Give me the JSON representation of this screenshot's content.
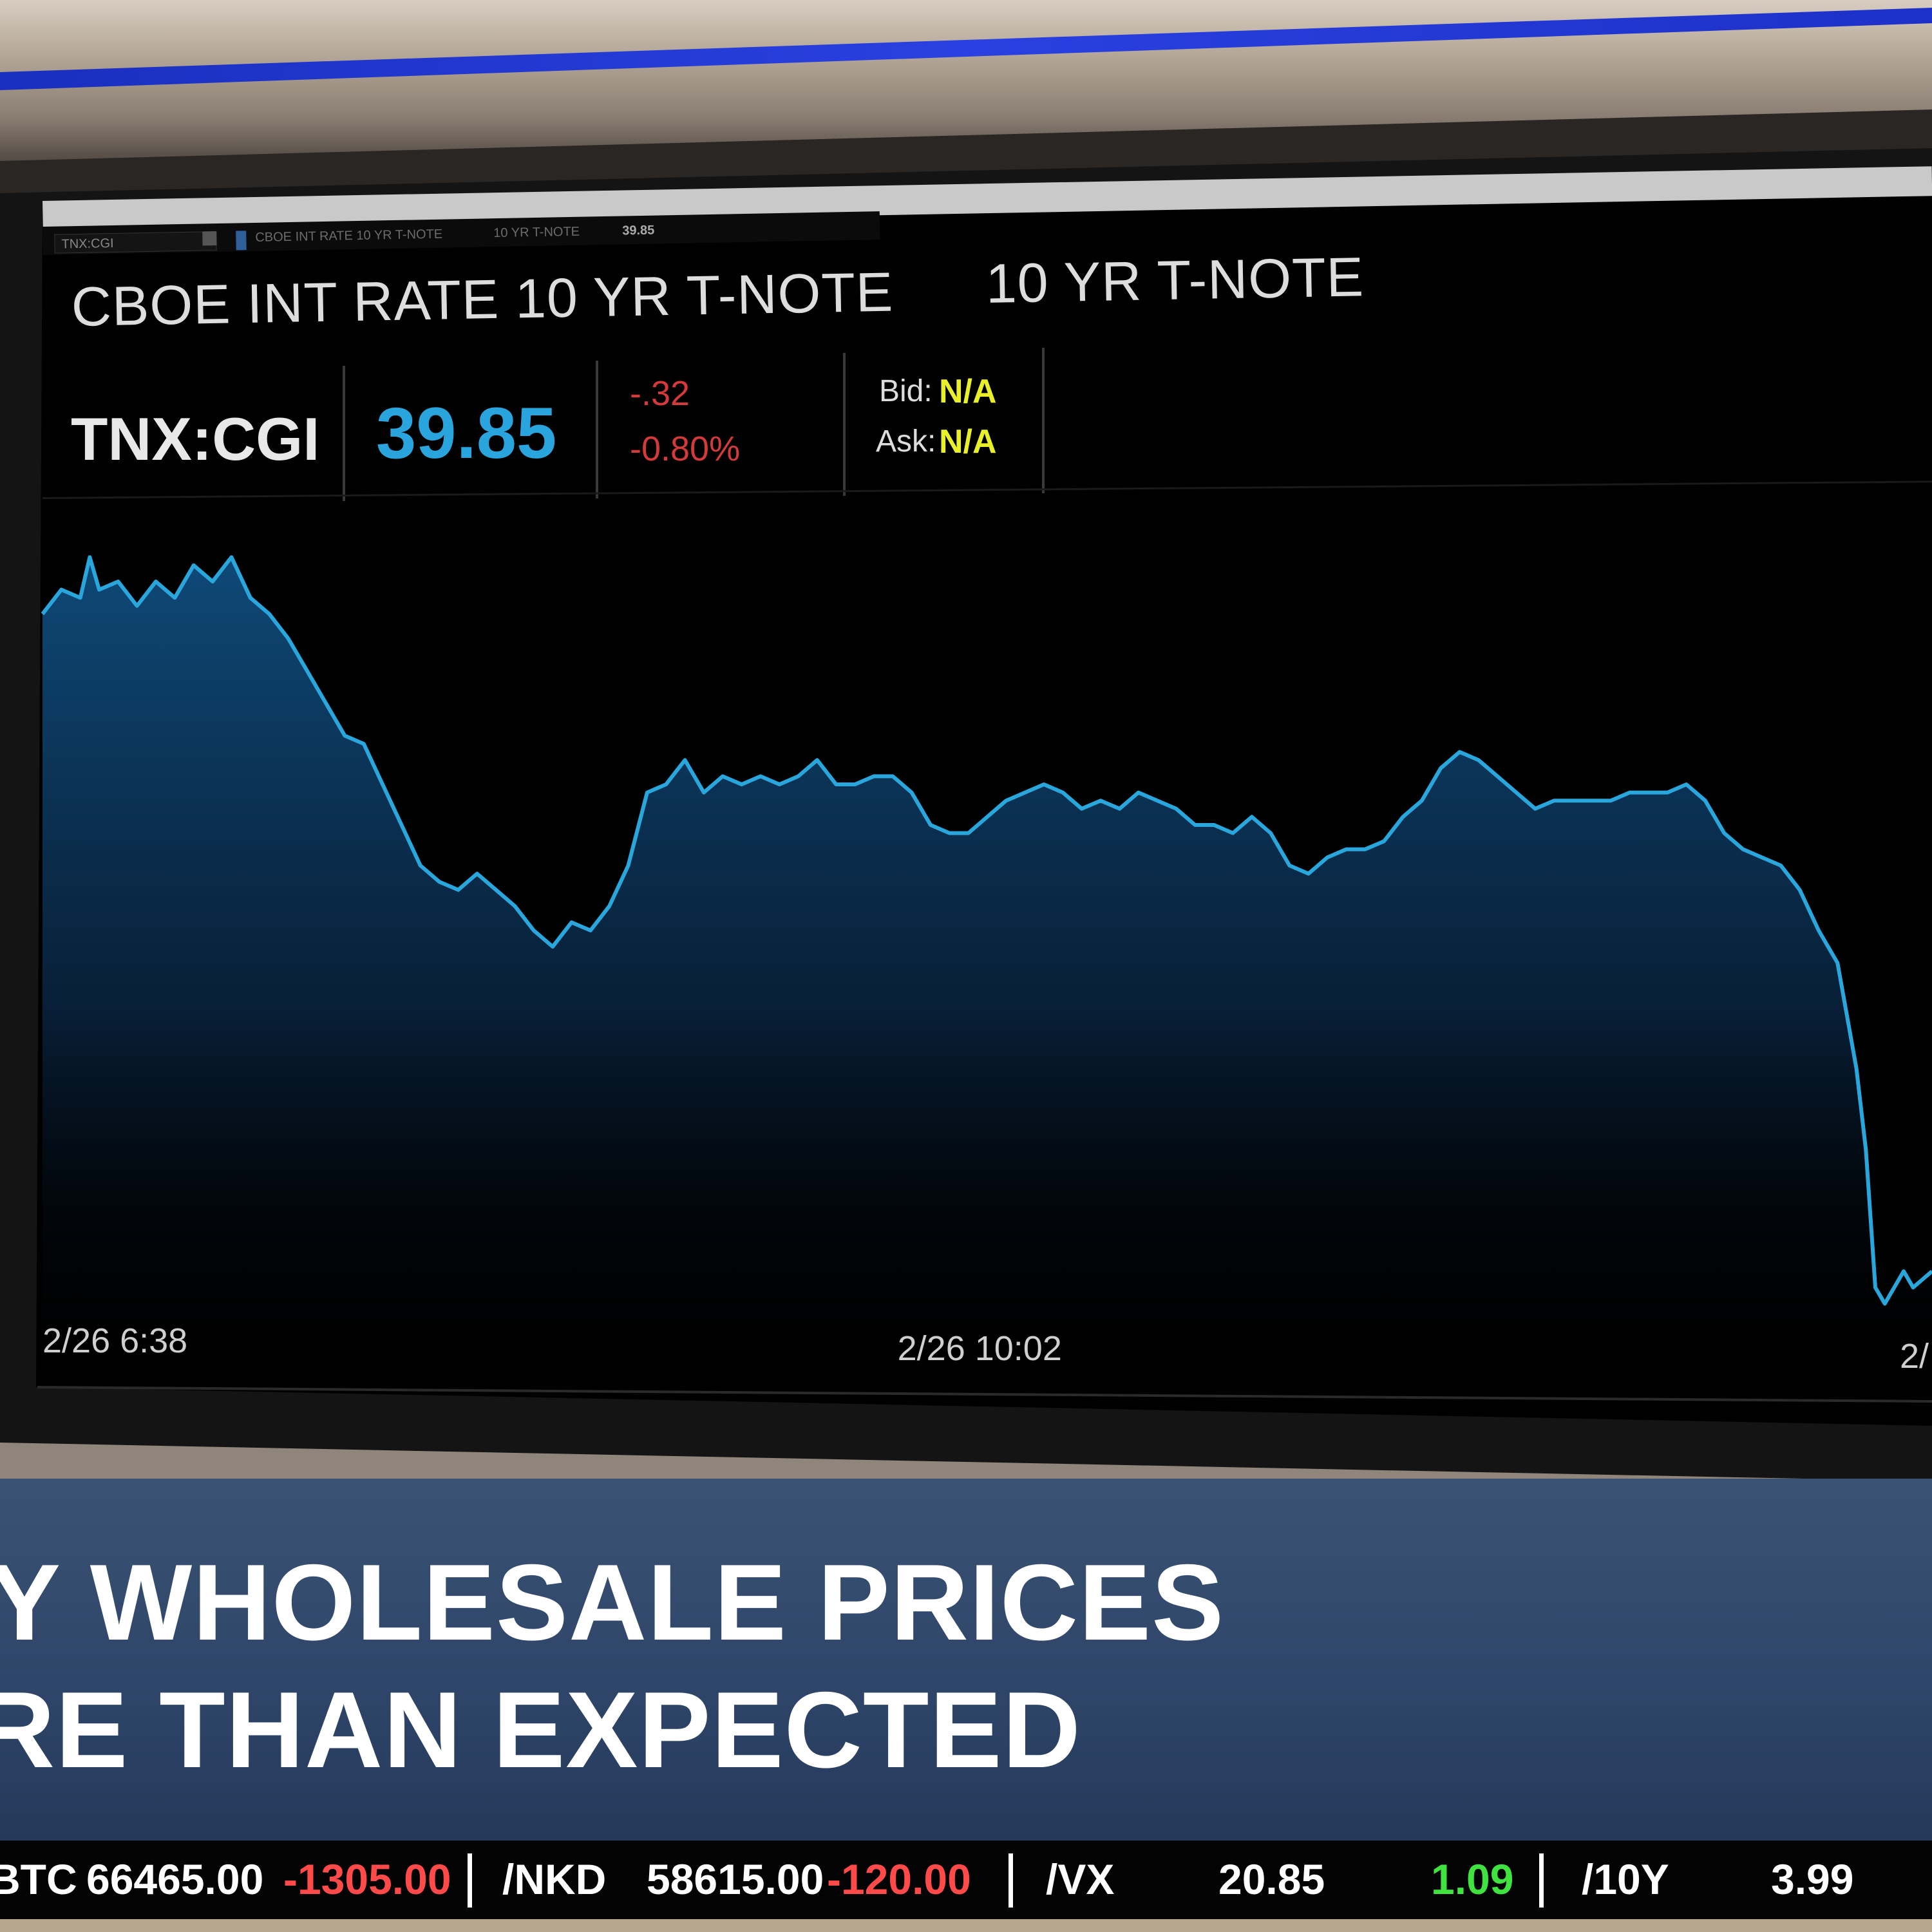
{
  "window": {
    "symbol_box": "TNX:CGI",
    "toolbar_name": "CBOE INT RATE 10 YR T-NOTE",
    "toolbar_desc": "10 YR T-NOTE",
    "toolbar_last": "39.85"
  },
  "quote": {
    "title_full": "CBOE INT RATE 10 YR T-NOTE",
    "title_short": "10 YR T-NOTE",
    "symbol": "TNX:CGI",
    "last": "39.85",
    "change": "-.32",
    "change_pct": "-0.80%",
    "bid_label": "Bid:",
    "bid_value": "N/A",
    "ask_label": "Ask:",
    "ask_value": "N/A",
    "colors": {
      "price": "#2aa4dc",
      "negative": "#d43a3a",
      "bid_ask": "#e9f02a",
      "line": "#29a7dd"
    }
  },
  "chart_data": {
    "type": "area",
    "title": "",
    "xlabel": "",
    "ylabel": "",
    "x_tick_labels": [
      "2/26 6:38",
      "2/26 10:02",
      "2/"
    ],
    "x_ticks_at": [
      0,
      49.6,
      100
    ],
    "xlim": [
      0,
      100
    ],
    "ylim": [
      0,
      100
    ],
    "grid": false,
    "legend": "none",
    "series": [
      {
        "x": [
          0,
          1,
          2,
          2.5,
          3,
          4,
          5,
          6,
          7,
          8,
          9,
          10,
          11,
          12,
          13,
          14,
          15,
          16,
          17,
          18,
          19,
          20,
          21,
          22,
          23,
          24,
          25,
          26,
          27,
          28,
          29,
          30,
          31,
          32,
          33,
          34,
          35,
          36,
          37,
          38,
          39,
          40,
          41,
          42,
          43,
          44,
          45,
          46,
          47,
          48,
          49,
          50,
          51,
          52,
          53,
          54,
          55,
          56,
          57,
          58,
          59,
          60,
          61,
          62,
          63,
          64,
          65,
          66,
          67,
          68,
          69,
          70,
          71,
          72,
          73,
          74,
          75,
          76,
          77,
          78,
          79,
          80,
          81,
          82,
          83,
          84,
          85,
          86,
          87,
          88,
          89,
          90,
          91,
          92,
          93,
          94,
          95,
          96,
          96.5,
          97,
          97.5,
          98,
          98.5,
          99,
          99.5,
          100
        ],
        "y": [
          91,
          94,
          93,
          98,
          94,
          95,
          92,
          95,
          93,
          97,
          95,
          98,
          93,
          91,
          88,
          84,
          80,
          76,
          75,
          70,
          65,
          60,
          58,
          57,
          59,
          57,
          55,
          52,
          50,
          53,
          52,
          55,
          60,
          69,
          70,
          73,
          69,
          71,
          70,
          71,
          70,
          71,
          73,
          70,
          70,
          71,
          71,
          69,
          65,
          64,
          64,
          66,
          68,
          69,
          70,
          69,
          67,
          68,
          67,
          69,
          68,
          67,
          65,
          65,
          64,
          66,
          64,
          60,
          59,
          61,
          62,
          62,
          63,
          66,
          68,
          72,
          74,
          73,
          71,
          69,
          67,
          68,
          68,
          68,
          68,
          69,
          69,
          69,
          70,
          68,
          64,
          62,
          61,
          60,
          57,
          52,
          48,
          35,
          25,
          8,
          6,
          8,
          10,
          8,
          9,
          10
        ]
      }
    ]
  },
  "headline": {
    "line1": "Y WHOLESALE PRICES",
    "line2": "RE THAN EXPECTED"
  },
  "ticker": {
    "items": [
      {
        "symbol": "BTC",
        "price": "66465.00",
        "change": "-1305.00",
        "dir": "neg"
      },
      {
        "symbol": "/NKD",
        "price": "58615.00",
        "change": "-120.00",
        "dir": "neg"
      },
      {
        "symbol": "/VX",
        "price": "20.85",
        "change": "1.09",
        "dir": "pos"
      },
      {
        "symbol": "/10Y",
        "price": "3.99",
        "change": "",
        "dir": "none"
      }
    ]
  }
}
